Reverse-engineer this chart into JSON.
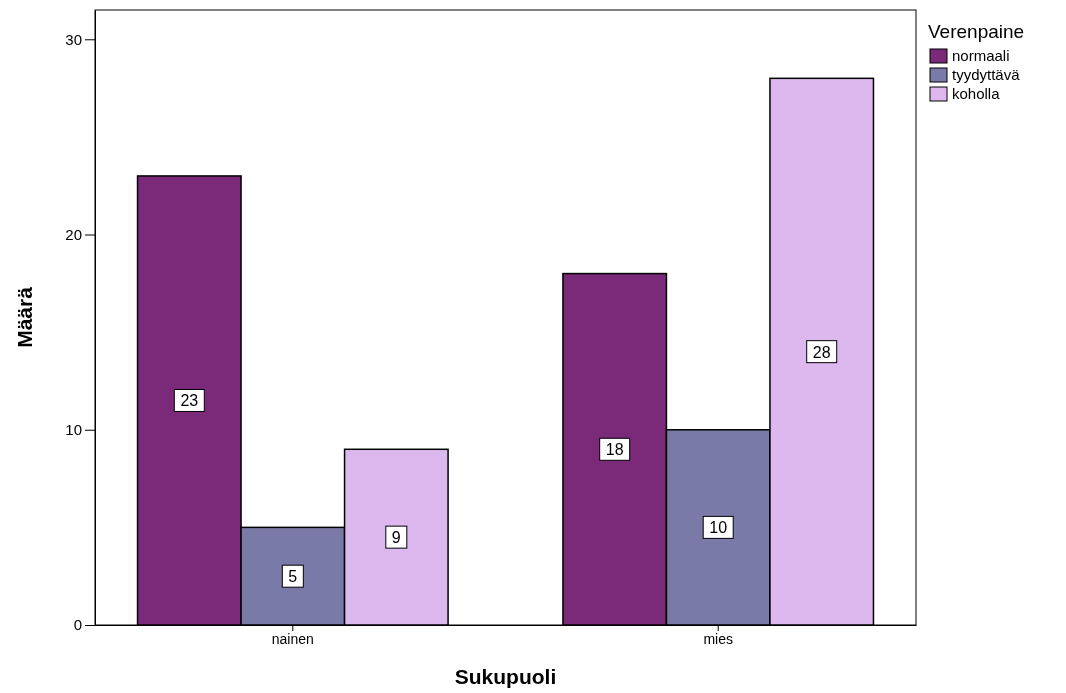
{
  "chart_data": {
    "type": "bar",
    "xlabel": "Sukupuoli",
    "ylabel": "Määrä",
    "legend_title": "Verenpaine",
    "categories": [
      "nainen",
      "mies"
    ],
    "series": [
      {
        "name": "normaali",
        "color": "#7b2a7a",
        "values": [
          23,
          18
        ]
      },
      {
        "name": "tyydyttävä",
        "color": "#7a7aa8",
        "values": [
          5,
          10
        ]
      },
      {
        "name": "koholla",
        "color": "#dcb8ef",
        "values": [
          9,
          28
        ]
      }
    ],
    "ylim": [
      0,
      31.5
    ],
    "yticks": [
      0,
      10,
      20,
      30
    ],
    "grid": false,
    "legend": "top right",
    "data_labels": true
  }
}
